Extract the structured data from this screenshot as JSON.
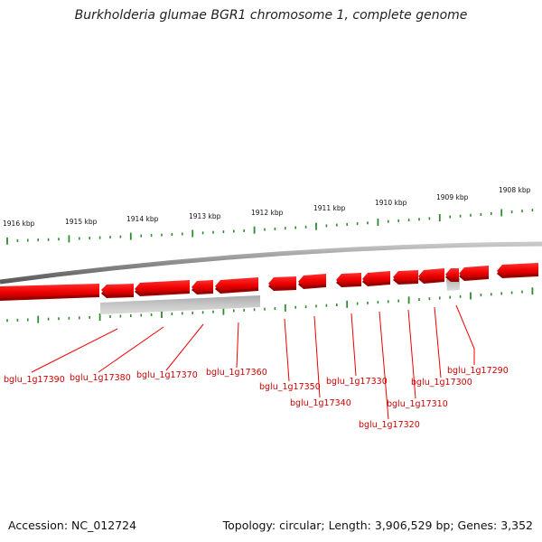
{
  "title": "Burkholderia glumae BGR1 chromosome 1, complete genome",
  "footer": {
    "accession": "Accession: NC_012724",
    "summary": "Topology: circular; Length: 3,906,529 bp; Genes: 3,352"
  },
  "colors": {
    "gene_forward": "#ee0000",
    "gene_shadow": "#990000",
    "pseudo_gene": "#b0b0b0",
    "backbone": "#8c8c8c",
    "ticks": "#2e8b2e",
    "label": "#cc0000"
  },
  "scale": {
    "unit": "kbp",
    "labels": [
      "1916 kbp",
      "1915 kbp",
      "1914 kbp",
      "1913 kbp",
      "1912 kbp",
      "1911 kbp",
      "1910 kbp",
      "1909 kbp",
      "1908 kbp"
    ]
  },
  "genes": [
    {
      "label": "bglu_1g17390"
    },
    {
      "label": "bglu_1g17380"
    },
    {
      "label": "bglu_1g17370"
    },
    {
      "label": "bglu_1g17360"
    },
    {
      "label": "bglu_1g17350"
    },
    {
      "label": "bglu_1g17340"
    },
    {
      "label": "bglu_1g17330"
    },
    {
      "label": "bglu_1g17320"
    },
    {
      "label": "bglu_1g17310"
    },
    {
      "label": "bglu_1g17300"
    },
    {
      "label": "bglu_1g17290"
    }
  ]
}
